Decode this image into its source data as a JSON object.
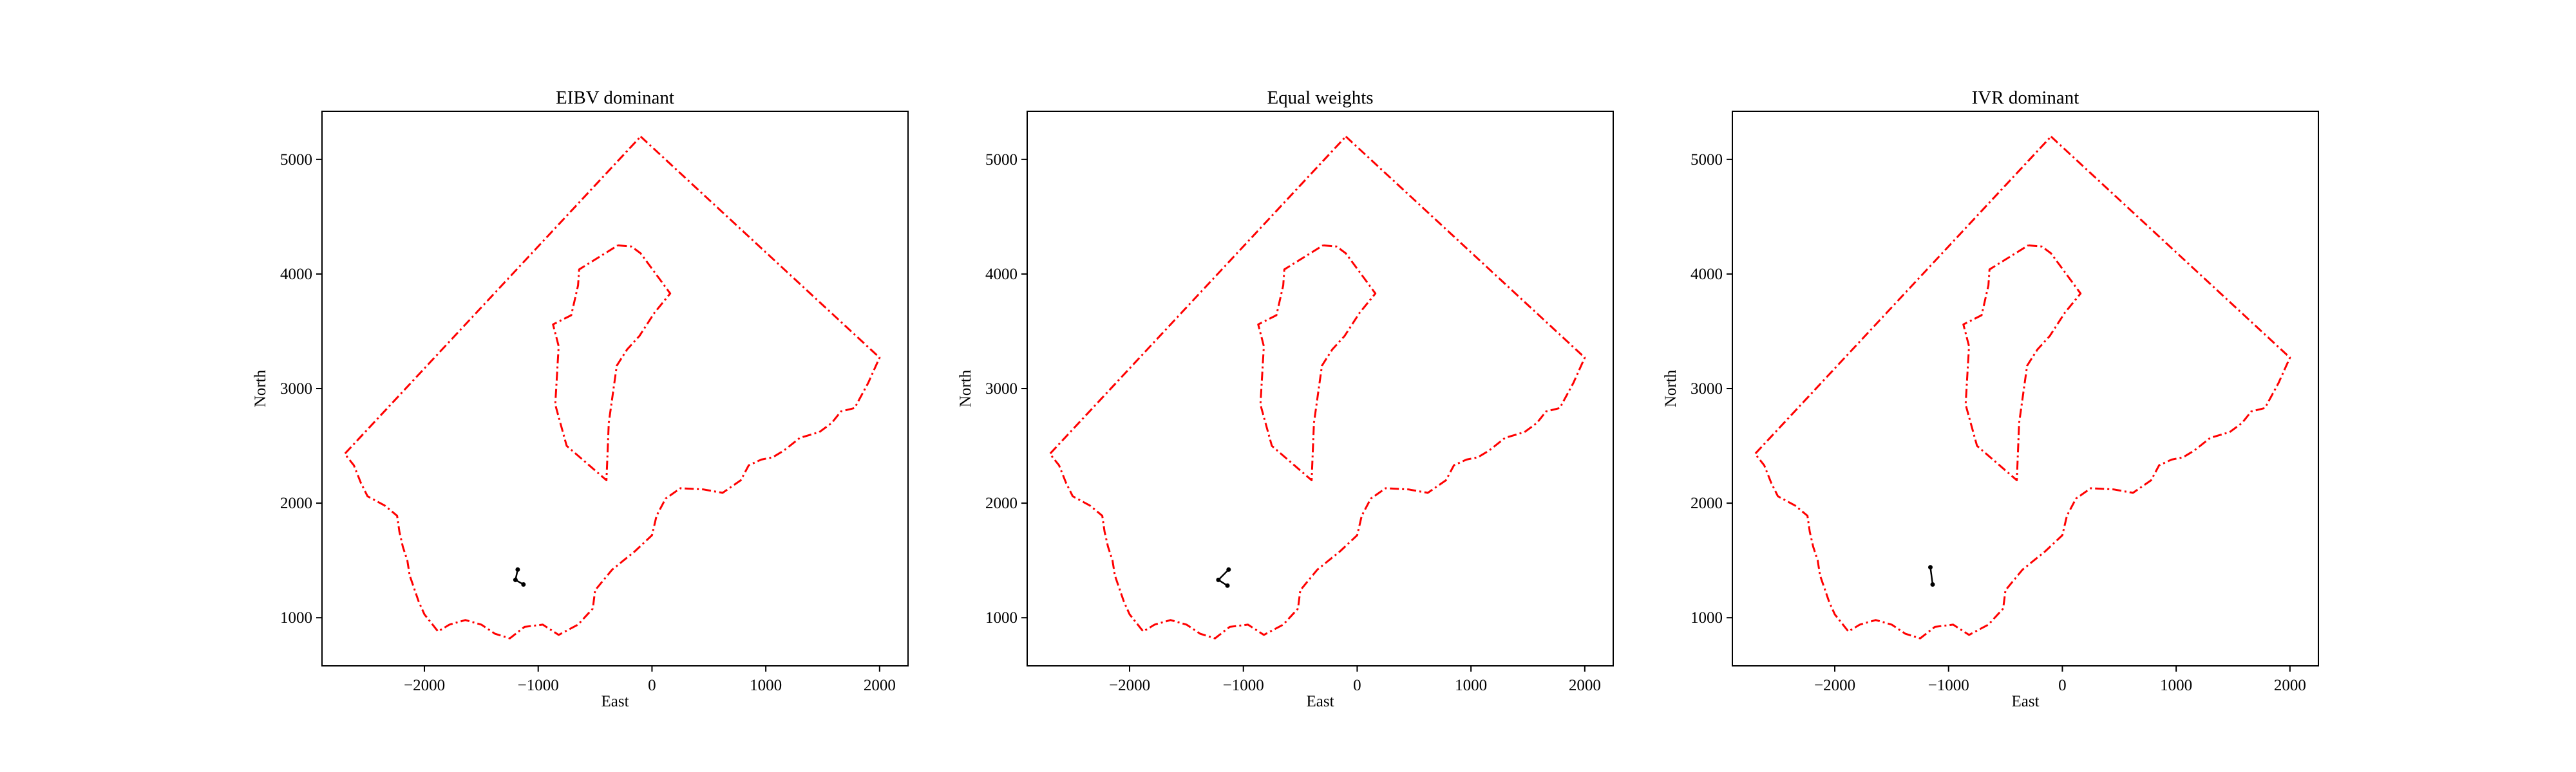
{
  "chart_data": [
    {
      "type": "line",
      "title": "EIBV dominant",
      "xlabel": "East",
      "ylabel": "North",
      "xticks": [
        -2000,
        -1000,
        0,
        1000,
        2000
      ],
      "yticks": [
        1000,
        2000,
        3000,
        4000,
        5000
      ],
      "xlim": [
        -2900,
        2250
      ],
      "ylim": [
        580,
        5420
      ],
      "grid": false,
      "boundary_color": "#ff0000",
      "path_color": "#000000",
      "path": [
        [
          -1180,
          1420
        ],
        [
          -1200,
          1330
        ],
        [
          -1130,
          1290
        ]
      ]
    },
    {
      "type": "line",
      "title": "Equal weights",
      "xlabel": "East",
      "ylabel": "North",
      "xticks": [
        -2000,
        -1000,
        0,
        1000,
        2000
      ],
      "yticks": [
        1000,
        2000,
        3000,
        4000,
        5000
      ],
      "xlim": [
        -2900,
        2250
      ],
      "ylim": [
        580,
        5420
      ],
      "grid": false,
      "boundary_color": "#ff0000",
      "path_color": "#000000",
      "path": [
        [
          -1130,
          1420
        ],
        [
          -1220,
          1330
        ],
        [
          -1140,
          1280
        ]
      ]
    },
    {
      "type": "line",
      "title": "IVR dominant",
      "xlabel": "East",
      "ylabel": "North",
      "xticks": [
        -2000,
        -1000,
        0,
        1000,
        2000
      ],
      "yticks": [
        1000,
        2000,
        3000,
        4000,
        5000
      ],
      "xlim": [
        -2900,
        2250
      ],
      "ylim": [
        580,
        5420
      ],
      "grid": false,
      "boundary_color": "#ff0000",
      "path_color": "#000000",
      "path": [
        [
          -1160,
          1440
        ],
        [
          -1140,
          1290
        ]
      ]
    }
  ],
  "boundaries": {
    "outer": [
      [
        -100,
        5200
      ],
      [
        2000,
        3270
      ],
      [
        1900,
        3050
      ],
      [
        1780,
        2830
      ],
      [
        1660,
        2800
      ],
      [
        1580,
        2700
      ],
      [
        1470,
        2620
      ],
      [
        1300,
        2570
      ],
      [
        1160,
        2460
      ],
      [
        1060,
        2400
      ],
      [
        960,
        2380
      ],
      [
        850,
        2330
      ],
      [
        780,
        2200
      ],
      [
        620,
        2090
      ],
      [
        450,
        2120
      ],
      [
        250,
        2130
      ],
      [
        120,
        2040
      ],
      [
        40,
        1890
      ],
      [
        0,
        1720
      ],
      [
        -150,
        1580
      ],
      [
        -350,
        1420
      ],
      [
        -500,
        1240
      ],
      [
        -520,
        1080
      ],
      [
        -650,
        940
      ],
      [
        -820,
        850
      ],
      [
        -960,
        940
      ],
      [
        -1120,
        920
      ],
      [
        -1250,
        820
      ],
      [
        -1380,
        860
      ],
      [
        -1500,
        940
      ],
      [
        -1640,
        980
      ],
      [
        -1780,
        940
      ],
      [
        -1880,
        880
      ],
      [
        -2000,
        1030
      ],
      [
        -2050,
        1140
      ],
      [
        -2130,
        1370
      ],
      [
        -2150,
        1500
      ],
      [
        -2190,
        1620
      ],
      [
        -2220,
        1750
      ],
      [
        -2240,
        1890
      ],
      [
        -2350,
        1980
      ],
      [
        -2500,
        2060
      ],
      [
        -2560,
        2180
      ],
      [
        -2620,
        2330
      ],
      [
        -2700,
        2430
      ],
      [
        -100,
        5200
      ]
    ],
    "inner": [
      [
        -300,
        4250
      ],
      [
        -180,
        4240
      ],
      [
        -100,
        4180
      ],
      [
        160,
        3830
      ],
      [
        20,
        3660
      ],
      [
        -110,
        3460
      ],
      [
        -220,
        3340
      ],
      [
        -310,
        3200
      ],
      [
        -380,
        2700
      ],
      [
        -400,
        2200
      ],
      [
        -750,
        2500
      ],
      [
        -850,
        2860
      ],
      [
        -820,
        3370
      ],
      [
        -870,
        3560
      ],
      [
        -710,
        3640
      ],
      [
        -650,
        3900
      ],
      [
        -640,
        4040
      ],
      [
        -300,
        4250
      ]
    ]
  }
}
